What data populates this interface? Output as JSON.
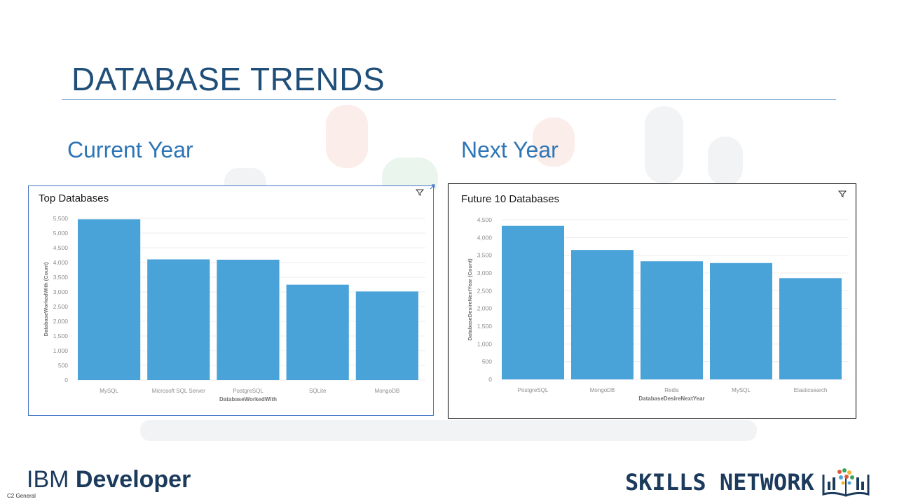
{
  "slide": {
    "title": "DATABASE TRENDS",
    "current_label": "Current Year",
    "next_label": "Next Year",
    "footer_tag": "C2 General"
  },
  "logos": {
    "ibm_part1": "IBM ",
    "ibm_part2": "Developer",
    "skills": "SKILLS NETWORK"
  },
  "colors": {
    "bar": "#4aa3d8",
    "title": "#1f4e79",
    "section": "#2e75b6"
  },
  "icons": {
    "filter": "filter-icon",
    "expand": "expand-icon",
    "book": "book-logo-icon"
  },
  "chart_data": [
    {
      "type": "bar",
      "title": "Top Databases",
      "categories": [
        "MySQL",
        "Microsoft SQL Server",
        "PostgreSQL",
        "SQLite",
        "MongoDB"
      ],
      "values": [
        5469,
        4107,
        4095,
        3246,
        3015
      ],
      "xlabel": "DatabaseWorkedWith",
      "ylabel": "DatabaseWorkedWith (Count)",
      "ylim": [
        0,
        5500
      ],
      "yticks": [
        0,
        500,
        1000,
        1500,
        2000,
        2500,
        3000,
        3500,
        4000,
        4500,
        5000,
        5500
      ],
      "grid": true
    },
    {
      "type": "bar",
      "title": "Future 10 Databases",
      "categories": [
        "PostgreSQL",
        "MongoDB",
        "Redis",
        "MySQL",
        "Elasticsearch"
      ],
      "values": [
        4328,
        3649,
        3331,
        3281,
        2856
      ],
      "xlabel": "DatabaseDesireNextYear",
      "ylabel": "DatabaseDesireNextYear (Count)",
      "ylim": [
        0,
        4500
      ],
      "yticks": [
        0,
        500,
        1000,
        1500,
        2000,
        2500,
        3000,
        3500,
        4000,
        4500
      ],
      "grid": true
    }
  ]
}
